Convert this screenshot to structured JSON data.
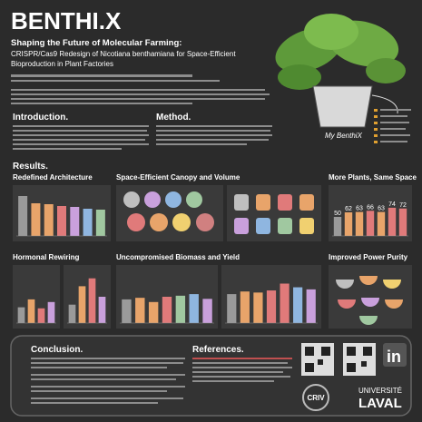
{
  "header": {
    "title": "BENTHI.X",
    "headline": "Shaping the Future of Molecular Farming:",
    "subtitle_1": "CRISPR/Cas9 Redesign of Nicotiana benthamiana for Space-Efficient",
    "subtitle_2": "Bioproduction in Plant Factories",
    "plant_label": "My BenthiX"
  },
  "sections": {
    "introduction": "Introduction.",
    "method": "Method.",
    "results": "Results.",
    "conclusion": "Conclusion.",
    "references": "References."
  },
  "panels": [
    {
      "title": "Redefined Architecture",
      "charts": [
        {
          "values": [
            88,
            72,
            70,
            66,
            64,
            60,
            58
          ],
          "colors": [
            "#9a9a9a",
            "#e8a46a",
            "#e8a46a",
            "#e07a7a",
            "#c9a0dc",
            "#8fb6e0",
            "#a0c8a0"
          ],
          "ylim": [
            0,
            100
          ]
        }
      ]
    },
    {
      "title": "Space-Efficient Canopy and Volume"
    },
    {
      "title": "More Plants, Same Space",
      "charts": [
        {
          "values": [
            50,
            62,
            63,
            66,
            63,
            74,
            72
          ],
          "colors": [
            "#9a9a9a",
            "#e8a46a",
            "#e8a46a",
            "#e07a7a",
            "#e8a46a",
            "#e07a7a",
            "#e07a7a"
          ],
          "ylim": [
            0,
            100
          ]
        }
      ]
    },
    {
      "title": "Hormonal Rewiring",
      "charts": [
        {
          "values": [
            30,
            45,
            28,
            40
          ],
          "colors": [
            "#9a9a9a",
            "#e8a46a",
            "#e07a7a",
            "#c9a0dc"
          ],
          "ylim": [
            0,
            100
          ]
        },
        {
          "values": [
            35,
            70,
            85,
            50
          ],
          "colors": [
            "#9a9a9a",
            "#e8a46a",
            "#e07a7a",
            "#c9a0dc"
          ],
          "ylim": [
            0,
            100
          ]
        }
      ]
    },
    {
      "title": "Uncompromised Biomass and Yield",
      "charts": [
        {
          "values": [
            45,
            48,
            40,
            50,
            52,
            55,
            46
          ],
          "colors": [
            "#9a9a9a",
            "#e8a46a",
            "#e8a46a",
            "#e07a7a",
            "#a0c8a0",
            "#8fb6e0",
            "#c9a0dc"
          ],
          "ylim": [
            0,
            100
          ]
        },
        {
          "values": [
            55,
            60,
            58,
            62,
            75,
            68,
            64
          ],
          "colors": [
            "#9a9a9a",
            "#e8a46a",
            "#e8a46a",
            "#e07a7a",
            "#e07a7a",
            "#8fb6e0",
            "#c9a0dc"
          ],
          "ylim": [
            0,
            100
          ]
        }
      ]
    },
    {
      "title": "Improved Power Purity"
    }
  ],
  "logos": {
    "criv": "CRIV",
    "university_1": "UNIVERSITÉ",
    "university_2": "LAVAL",
    "linkedin": "in"
  }
}
